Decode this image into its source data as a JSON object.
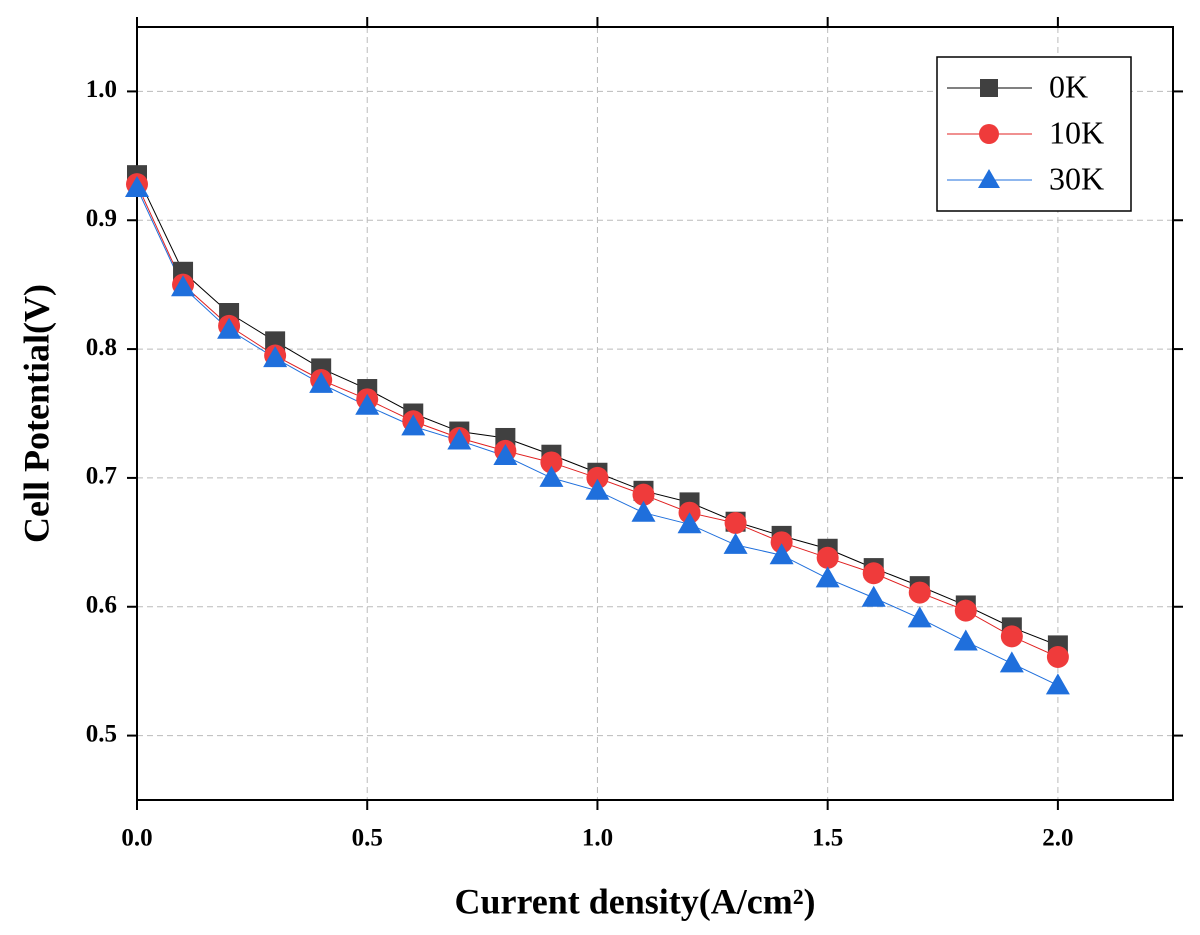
{
  "chart_data": {
    "type": "line",
    "x_label": "Current density(A/cm²)",
    "y_label": "Cell Potential(V)",
    "x": [
      0,
      0.1,
      0.2,
      0.3,
      0.4,
      0.5,
      0.6,
      0.7,
      0.8,
      0.9,
      1.0,
      1.1,
      1.2,
      1.3,
      1.4,
      1.5,
      1.6,
      1.7,
      1.8,
      1.9,
      2.0
    ],
    "series": [
      {
        "name": "0K",
        "color": "#404040",
        "line_color": "#000000",
        "marker": "square",
        "values": [
          0.935,
          0.86,
          0.828,
          0.806,
          0.785,
          0.769,
          0.75,
          0.736,
          0.731,
          0.718,
          0.704,
          0.69,
          0.681,
          0.666,
          0.655,
          0.645,
          0.63,
          0.616,
          0.601,
          0.584,
          0.57
        ]
      },
      {
        "name": "10K",
        "color": "#ef3b3b",
        "line_color": "#e02020",
        "marker": "circle",
        "values": [
          0.928,
          0.85,
          0.818,
          0.795,
          0.776,
          0.761,
          0.744,
          0.731,
          0.721,
          0.712,
          0.7,
          0.687,
          0.673,
          0.665,
          0.65,
          0.638,
          0.626,
          0.611,
          0.597,
          0.577,
          0.561
        ]
      },
      {
        "name": "30K",
        "color": "#1f6fdc",
        "line_color": "#1f6fdc",
        "marker": "triangle",
        "values": [
          0.925,
          0.848,
          0.815,
          0.793,
          0.773,
          0.756,
          0.74,
          0.729,
          0.717,
          0.7,
          0.69,
          0.673,
          0.664,
          0.648,
          0.64,
          0.622,
          0.607,
          0.591,
          0.573,
          0.556,
          0.539
        ]
      }
    ],
    "xlim": [
      0,
      2.25
    ],
    "ylim": [
      0.45,
      1.05
    ],
    "xticks": [
      {
        "value": 0,
        "label": "0.0"
      },
      0.5,
      {
        "value": 1,
        "label": "1.0"
      },
      1.5,
      {
        "value": 2,
        "label": "2.0"
      }
    ],
    "yticks": [
      0.5,
      0.6,
      0.7,
      0.8,
      0.9,
      {
        "value": 1,
        "label": "1.0"
      }
    ],
    "grid": true,
    "legend": "upper right"
  }
}
